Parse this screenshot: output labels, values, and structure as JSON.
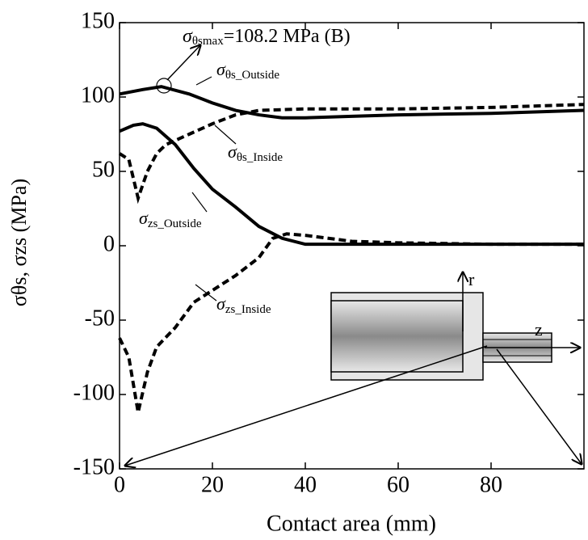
{
  "chart_data": {
    "type": "line",
    "x_label": "Contact area (mm)",
    "y_label": "σθs, σzs (MPa)",
    "xlim": [
      0,
      100
    ],
    "ylim": [
      -150,
      150
    ],
    "xticks": [
      0,
      20,
      40,
      60,
      80
    ],
    "yticks": [
      -150,
      -100,
      -50,
      0,
      50,
      100,
      150
    ],
    "series": [
      {
        "name": "σθs_Outside",
        "color": "#000000",
        "line_style": "solid",
        "x": [
          0,
          5,
          9,
          15,
          20,
          25,
          30,
          35,
          40,
          50,
          60,
          70,
          80,
          90,
          100
        ],
        "values": [
          102,
          105,
          107,
          102,
          96,
          91,
          88,
          86,
          86,
          87,
          88,
          88.5,
          89,
          90,
          91
        ]
      },
      {
        "name": "σθs_Inside",
        "color": "#000000",
        "line_style": "dashed",
        "x": [
          0,
          2,
          3,
          4,
          6,
          8,
          10,
          15,
          20,
          25,
          30,
          40,
          60,
          80,
          100
        ],
        "values": [
          62,
          58,
          45,
          32,
          50,
          62,
          68,
          75,
          82,
          88,
          91,
          92,
          92,
          93,
          95
        ]
      },
      {
        "name": "σzs_Outside",
        "color": "#000000",
        "line_style": "solid",
        "x": [
          0,
          3,
          5,
          8,
          12,
          16,
          20,
          25,
          30,
          35,
          40,
          45,
          60,
          80,
          100
        ],
        "values": [
          77,
          81,
          82,
          79,
          68,
          52,
          38,
          26,
          13,
          5,
          1,
          1,
          1,
          1,
          1
        ]
      },
      {
        "name": "σzs_Inside",
        "color": "#000000",
        "line_style": "dashed",
        "x": [
          0,
          2,
          4,
          6,
          8,
          12,
          16,
          20,
          25,
          30,
          33,
          36,
          40,
          50,
          60,
          80,
          100
        ],
        "values": [
          -62,
          -75,
          -112,
          -85,
          -68,
          -55,
          -38,
          -30,
          -20,
          -8,
          5,
          8,
          7,
          3,
          2,
          1,
          1
        ]
      }
    ],
    "annotation": "σθsmax=108.2 MPa (B)",
    "inset_labels": [
      "r",
      "z"
    ]
  }
}
